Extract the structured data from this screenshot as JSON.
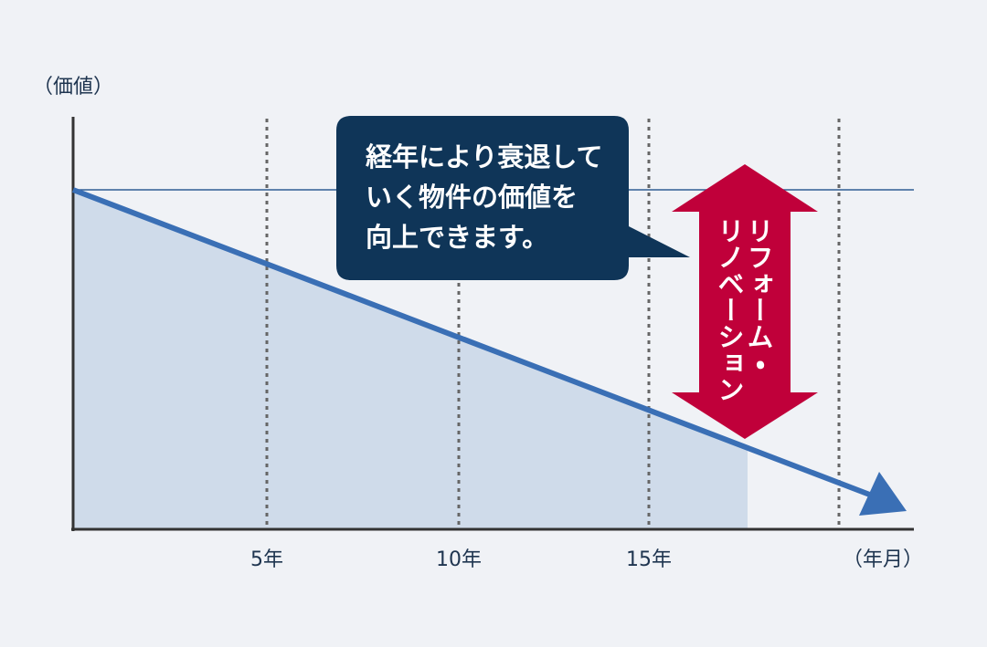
{
  "axes": {
    "y_label": "（価値）",
    "x_label": "（年月）",
    "x_ticks": [
      "5年",
      "10年",
      "15年"
    ]
  },
  "callout": {
    "lines": [
      "経年により衰退して",
      "いく物件の価値を",
      "向上できます。"
    ]
  },
  "arrow_label": {
    "lines": [
      "リフォーム・",
      "リノベーション"
    ]
  }
}
